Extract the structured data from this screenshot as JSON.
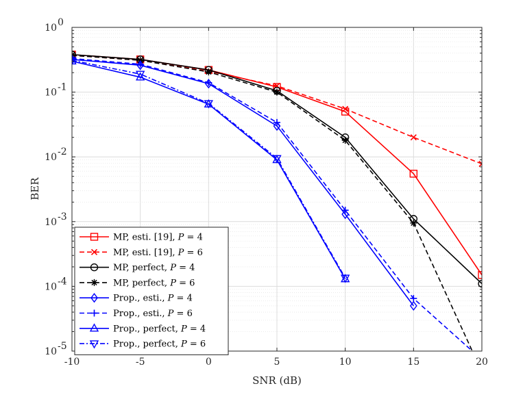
{
  "chart_data": {
    "type": "line",
    "title": "",
    "xlabel": "SNR (dB)",
    "ylabel": "BER",
    "xlim": [
      -10,
      20
    ],
    "ylim": [
      1e-05,
      1
    ],
    "yscale": "log",
    "grid": true,
    "legend_position": "bottom-left",
    "x_ticks": [
      "-10",
      "-5",
      "0",
      "5",
      "10",
      "15",
      "20"
    ],
    "y_ticks": [
      {
        "base": "10",
        "exp": "0"
      },
      {
        "base": "10",
        "exp": "-1"
      },
      {
        "base": "10",
        "exp": "-2"
      },
      {
        "base": "10",
        "exp": "-3"
      },
      {
        "base": "10",
        "exp": "-4"
      },
      {
        "base": "10",
        "exp": "-5"
      }
    ],
    "series": [
      {
        "name": "MP, esti. [19], P = 4",
        "label_parts": [
          "MP, esti. [19], ",
          "P",
          " = 4"
        ],
        "color": "#ff0000",
        "dash": "solid",
        "marker": "square",
        "x": [
          -10,
          -5,
          0,
          5,
          10,
          15,
          20
        ],
        "y": [
          0.38,
          0.32,
          0.22,
          0.12,
          0.05,
          0.0055,
          0.00015
        ]
      },
      {
        "name": "MP, esti. [19], P = 6",
        "label_parts": [
          "MP, esti. [19], ",
          "P",
          " = 6"
        ],
        "color": "#ff0000",
        "dash": "dashed",
        "marker": "x",
        "x": [
          -10,
          -5,
          0,
          5,
          10,
          15,
          20
        ],
        "y": [
          0.37,
          0.31,
          0.21,
          0.125,
          0.055,
          0.02,
          0.0078
        ]
      },
      {
        "name": "MP, perfect, P = 4",
        "label_parts": [
          "MP, perfect, ",
          "P",
          " = 4"
        ],
        "color": "#000000",
        "dash": "solid",
        "marker": "circle",
        "x": [
          -10,
          -5,
          0,
          5,
          10,
          15,
          20
        ],
        "y": [
          0.38,
          0.32,
          0.22,
          0.105,
          0.02,
          0.0011,
          0.00011
        ]
      },
      {
        "name": "MP, perfect, P = 6",
        "label_parts": [
          "MP, perfect, ",
          "P",
          " = 6"
        ],
        "color": "#000000",
        "dash": "dashed",
        "marker": "asterisk",
        "x": [
          -10,
          -5,
          0,
          5,
          10,
          15,
          19.3
        ],
        "y": [
          0.37,
          0.31,
          0.205,
          0.1,
          0.018,
          0.00095,
          1e-05
        ]
      },
      {
        "name": "Prop., esti., P = 4",
        "label_parts": [
          "Prop., esti., ",
          "P",
          " = 4"
        ],
        "color": "#0000ff",
        "dash": "solid",
        "marker": "diamond",
        "x": [
          -10,
          -5,
          0,
          5,
          10,
          15
        ],
        "y": [
          0.32,
          0.26,
          0.135,
          0.03,
          0.0013,
          5e-05
        ]
      },
      {
        "name": "Prop., esti., P = 6",
        "label_parts": [
          "Prop., esti., ",
          "P",
          " = 6"
        ],
        "color": "#0000ff",
        "dash": "dashed",
        "marker": "plus",
        "x": [
          -10,
          -5,
          0,
          5,
          10,
          15,
          19.3
        ],
        "y": [
          0.33,
          0.27,
          0.14,
          0.034,
          0.0015,
          6.5e-05,
          1e-05
        ]
      },
      {
        "name": "Prop., perfect, P = 4",
        "label_parts": [
          "Prop., perfect, ",
          "P",
          " = 4"
        ],
        "color": "#0000ff",
        "dash": "solid",
        "marker": "triangle-up",
        "x": [
          -10,
          -5,
          0,
          5,
          10
        ],
        "y": [
          0.3,
          0.17,
          0.065,
          0.009,
          0.00013
        ]
      },
      {
        "name": "Prop., perfect, P = 6",
        "label_parts": [
          "Prop., perfect, ",
          "P",
          " = 6"
        ],
        "color": "#0000ff",
        "dash": "dashdot",
        "marker": "triangle-down",
        "x": [
          -10,
          -5,
          0,
          5,
          10
        ],
        "y": [
          0.31,
          0.19,
          0.067,
          0.0095,
          0.000135
        ]
      }
    ]
  }
}
